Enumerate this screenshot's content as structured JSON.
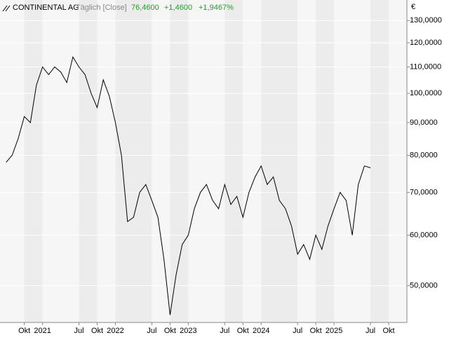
{
  "chart_data": {
    "type": "line",
    "title": "CONTINENTAL AG",
    "subtitle": "Täglich [Close]",
    "last": "76,4600",
    "change": "+1,4600",
    "change_pct": "+1,9467%",
    "currency": "€",
    "log_scale": true,
    "color": "#000000",
    "x": [
      "2020-07",
      "2020-08",
      "2020-09",
      "2020-10",
      "2020-11",
      "2020-12",
      "2021-01",
      "2021-02",
      "2021-03",
      "2021-04",
      "2021-05",
      "2021-06",
      "2021-07",
      "2021-08",
      "2021-09",
      "2021-10",
      "2021-11",
      "2021-12",
      "2022-01",
      "2022-02",
      "2022-03",
      "2022-04",
      "2022-05",
      "2022-06",
      "2022-07",
      "2022-08",
      "2022-09",
      "2022-10",
      "2022-11",
      "2022-12",
      "2023-01",
      "2023-02",
      "2023-03",
      "2023-04",
      "2023-05",
      "2023-06",
      "2023-07",
      "2023-08",
      "2023-09",
      "2023-10",
      "2023-11",
      "2023-12",
      "2024-01",
      "2024-02",
      "2024-03",
      "2024-04",
      "2024-05",
      "2024-06",
      "2024-07",
      "2024-08",
      "2024-09",
      "2024-10",
      "2024-11",
      "2024-12",
      "2025-01",
      "2025-02",
      "2025-03",
      "2025-04",
      "2025-05",
      "2025-06",
      "2025-07"
    ],
    "values": [
      78,
      80,
      85,
      92,
      90,
      103,
      110,
      107,
      110,
      108,
      104,
      114,
      110,
      107,
      100,
      95,
      105,
      99,
      90,
      80,
      63,
      64,
      70,
      72,
      68,
      64,
      55,
      45,
      52,
      58,
      60,
      66,
      70,
      72,
      68,
      66,
      72,
      67,
      69,
      64,
      70,
      74,
      77,
      72,
      74,
      68,
      66,
      62,
      56,
      58,
      55,
      60,
      57,
      62,
      66,
      70,
      68,
      60,
      72,
      77,
      76.46
    ],
    "xlim": [
      "2020-06",
      "2026-01"
    ],
    "xticks": [
      {
        "value": "2020-10",
        "label": "Okt"
      },
      {
        "value": "2021-01",
        "label": "2021"
      },
      {
        "value": "2021-07",
        "label": "Jul"
      },
      {
        "value": "2021-10",
        "label": "Okt"
      },
      {
        "value": "2022-01",
        "label": "2022"
      },
      {
        "value": "2022-07",
        "label": "Jul"
      },
      {
        "value": "2022-10",
        "label": "Okt"
      },
      {
        "value": "2023-01",
        "label": "2023"
      },
      {
        "value": "2023-07",
        "label": "Jul"
      },
      {
        "value": "2023-10",
        "label": "Okt"
      },
      {
        "value": "2024-01",
        "label": "2024"
      },
      {
        "value": "2024-07",
        "label": "Jul"
      },
      {
        "value": "2024-10",
        "label": "Okt"
      },
      {
        "value": "2025-01",
        "label": "2025"
      },
      {
        "value": "2025-07",
        "label": "Jul"
      },
      {
        "value": "2025-10",
        "label": "Okt"
      }
    ],
    "ylim": [
      43.8,
      140
    ],
    "yticks": [
      {
        "value": 50,
        "label": "50,0000"
      },
      {
        "value": 60,
        "label": "60,0000"
      },
      {
        "value": 70,
        "label": "70,0000"
      },
      {
        "value": 80,
        "label": "80,0000"
      },
      {
        "value": 90,
        "label": "90,0000"
      },
      {
        "value": 100,
        "label": "100,0000"
      },
      {
        "value": 110,
        "label": "110,0000"
      },
      {
        "value": 120,
        "label": "120,0000"
      },
      {
        "value": 130,
        "label": "130,0000"
      }
    ],
    "grid": true
  }
}
